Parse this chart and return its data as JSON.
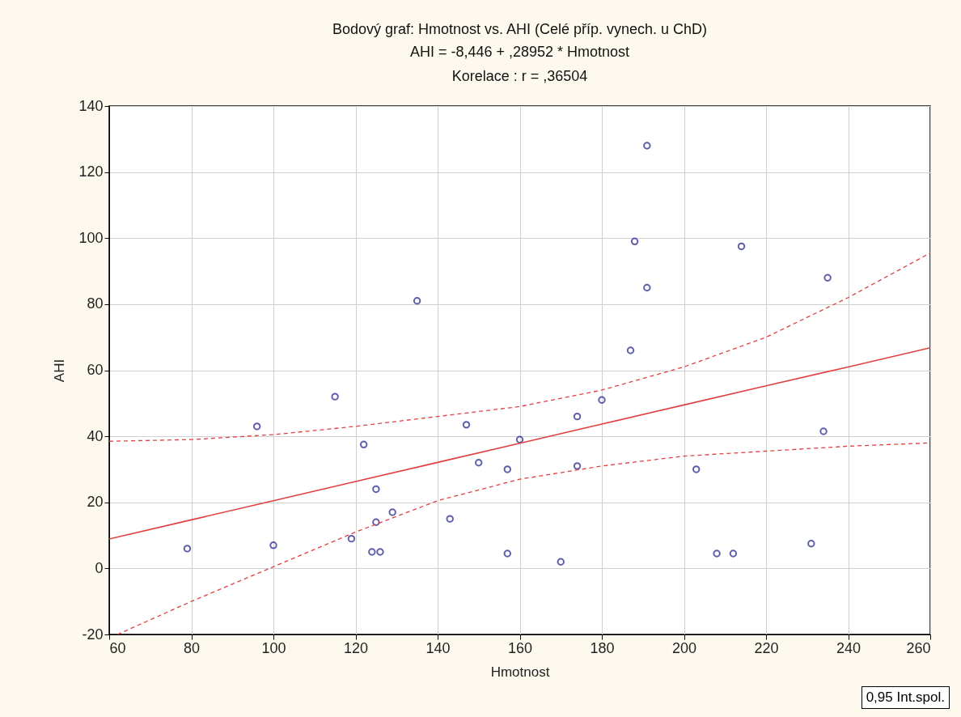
{
  "chart_data": {
    "type": "scatter",
    "title": "Bodový graf: Hmotnost vs. AHI     (Celé příp. vynech. u ChD)",
    "subtitle": "AHI     = -8,446 + ,28952 * Hmotnost\nKorelace :   r = ,36504",
    "xlabel": "Hmotnost",
    "ylabel": "AHI",
    "xlim": [
      60,
      260
    ],
    "xticks": [
      60,
      80,
      100,
      120,
      140,
      160,
      180,
      200,
      220,
      240,
      260
    ],
    "ylim": [
      -20,
      140
    ],
    "yticks": [
      -20,
      0,
      20,
      40,
      60,
      80,
      100,
      120,
      140
    ],
    "grid": true,
    "marker": "circle",
    "annotations": [
      "0,95 Int.spol."
    ],
    "series": [
      {
        "color": "#1a1a8a",
        "x": [
          79,
          96,
          100,
          115,
          119,
          122,
          124,
          125,
          125,
          126,
          129,
          135,
          143,
          147,
          150,
          157,
          157,
          160,
          170,
          174,
          174,
          180,
          187,
          188,
          191,
          191,
          203,
          208,
          212,
          214,
          231,
          234,
          235
        ],
        "values": [
          6,
          43,
          7,
          52,
          9,
          37.5,
          5,
          24,
          14,
          5,
          17,
          81,
          15,
          43.5,
          32,
          30,
          4.5,
          39,
          2,
          46,
          31,
          51,
          66,
          99,
          128,
          85,
          30,
          4.5,
          4.5,
          97.5,
          7.5,
          41.5,
          88
        ]
      },
      {
        "type": "line",
        "color": "#e04040",
        "marker": "none",
        "line_style": "solid",
        "x": [
          60,
          80,
          100,
          120,
          140,
          160,
          180,
          200,
          220,
          240,
          260
        ],
        "values": [
          8.9,
          14.7,
          20.5,
          26.3,
          32.1,
          37.9,
          43.7,
          49.5,
          55.3,
          61.0,
          66.8
        ]
      },
      {
        "type": "line",
        "color": "#e04040",
        "marker": "none",
        "line_style": "dashed",
        "x": [
          60,
          80,
          100,
          120,
          140,
          160,
          180,
          200,
          220,
          240,
          260
        ],
        "values": [
          38.5,
          39,
          40.5,
          43,
          46,
          49,
          54,
          61,
          70,
          82,
          95.5
        ]
      },
      {
        "type": "line",
        "color": "#e04040",
        "marker": "none",
        "line_style": "dashed",
        "x": [
          62,
          80,
          100,
          120,
          140,
          160,
          180,
          200,
          220,
          240,
          260
        ],
        "values": [
          -20,
          -10,
          0.5,
          11,
          20.5,
          27,
          31,
          34,
          35.5,
          37,
          38
        ]
      }
    ]
  }
}
